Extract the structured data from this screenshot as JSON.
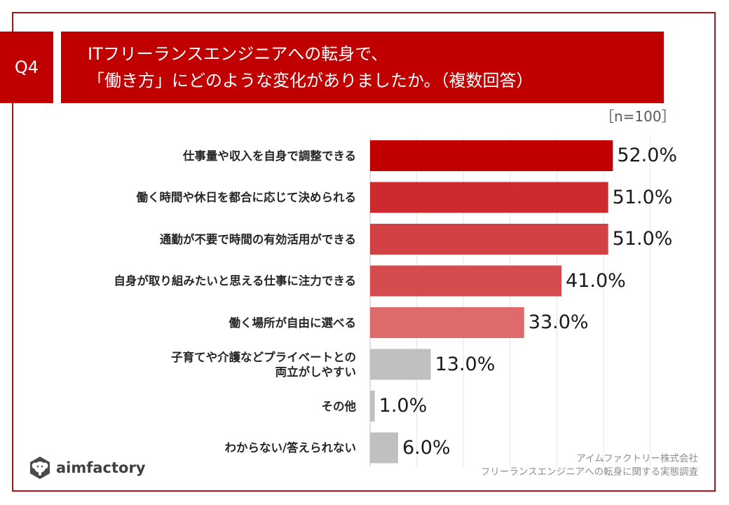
{
  "question_id": "Q4",
  "title": {
    "line1": "ITフリーランスエンジニアへの転身で、",
    "line2": "「働き方」にどのような変化がありましたか。（複数回答）"
  },
  "sample_size": "［n=100］",
  "chart_data": {
    "type": "bar",
    "orientation": "horizontal",
    "title": "ITフリーランスエンジニアへの転身で、「働き方」にどのような変化がありましたか。（複数回答）",
    "xlabel": "",
    "ylabel": "",
    "xlim": [
      0,
      60
    ],
    "grid": true,
    "unit": "%",
    "categories": [
      "仕事量や収入を自身で調整できる",
      "働く時間や休日を都合に応じて決められる",
      "通勤が不要で時間の有効活用ができる",
      "自身が取り組みたいと思える仕事に注力できる",
      "働く場所が自由に選べる",
      "子育てや介護などプライベートとの両立がしやすい",
      "その他",
      "わからない/答えられない"
    ],
    "category_lines": [
      [
        "仕事量や収入を自身で調整できる"
      ],
      [
        "働く時間や休日を都合に応じて決められる"
      ],
      [
        "通勤が不要で時間の有効活用ができる"
      ],
      [
        "自身が取り組みたいと思える仕事に注力できる"
      ],
      [
        "働く場所が自由に選べる"
      ],
      [
        "子育てや介護などプライベートとの",
        "両立がしやすい"
      ],
      [
        "その他"
      ],
      [
        "わからない/答えられない"
      ]
    ],
    "values": [
      52.0,
      51.0,
      51.0,
      41.0,
      33.0,
      13.0,
      1.0,
      6.0
    ],
    "value_labels": [
      "52.0%",
      "51.0%",
      "51.0%",
      "41.0%",
      "33.0%",
      "13.0%",
      "1.0%",
      "6.0%"
    ],
    "colors": [
      "#c00000",
      "#cc2a2e",
      "#d24144",
      "#d54b4e",
      "#de6a6c",
      "#c0c0c0",
      "#c0c0c0",
      "#c0c0c0"
    ]
  },
  "logo": {
    "text": "aimfactory"
  },
  "source": {
    "line1": "アイムファクトリー株式会社",
    "line2": "フリーランスエンジニアへの転身に関する実態調査"
  }
}
